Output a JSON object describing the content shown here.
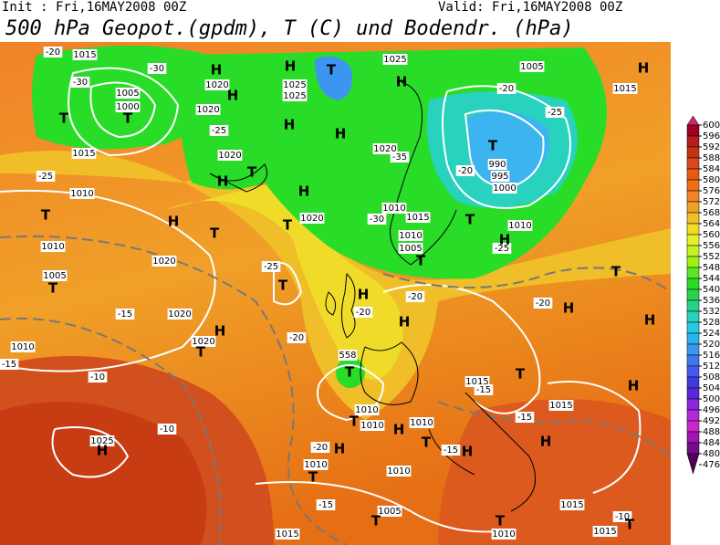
{
  "header": {
    "init": "Init : Fri,16MAY2008 00Z",
    "valid": "Valid: Fri,16MAY2008 00Z",
    "title": "500 hPa Geopot.(gpdm), T (C) und Bodendr. (hPa)"
  },
  "colorbar": {
    "ticks": [
      600,
      596,
      592,
      588,
      584,
      580,
      576,
      572,
      568,
      564,
      560,
      556,
      552,
      548,
      544,
      540,
      536,
      532,
      528,
      524,
      520,
      516,
      512,
      508,
      504,
      500,
      496,
      492,
      488,
      484,
      480,
      476
    ],
    "colors": [
      "#c8286e",
      "#a0001e",
      "#b41e1e",
      "#c83214",
      "#dc461e",
      "#e65a14",
      "#f06e14",
      "#f08228",
      "#f0a028",
      "#f0be28",
      "#f0dc28",
      "#e6f028",
      "#c8f028",
      "#a0f014",
      "#5ae628",
      "#28dc28",
      "#28d250",
      "#28d28c",
      "#28d2be",
      "#28c8e6",
      "#28b4f0",
      "#3c96f0",
      "#3c78f0",
      "#465af0",
      "#3c3cdc",
      "#5a28dc",
      "#8c28dc",
      "#b428dc",
      "#c828c8",
      "#a014b4",
      "#780a8c",
      "#50005a"
    ]
  },
  "map_labels": [
    "H",
    "H",
    "H",
    "T",
    "1025",
    "1015",
    "-20",
    "-30",
    "-30",
    "1005",
    "1000",
    "T",
    "T",
    "1020",
    "1025",
    "1025",
    "H",
    "1020",
    "-25",
    "H",
    "H",
    "1020",
    "-35",
    "T",
    "990",
    "995",
    "1000",
    "-20",
    "-25",
    "1005",
    "1015",
    "-20",
    "H",
    "T",
    "H",
    "H",
    "1020",
    "1020",
    "1015",
    "1010",
    "-30",
    "T",
    "1010",
    "-25",
    "H",
    "T",
    "H",
    "T",
    "T",
    "1015",
    "-25",
    "1010",
    "1010",
    "1005",
    "T",
    "1020",
    "-25",
    "T",
    "1005",
    "T",
    "1010",
    "H",
    "-20",
    "H",
    "-20",
    "-20",
    "H",
    "T",
    "1020",
    "-15",
    "H",
    "1020",
    "T",
    "1010",
    "-15",
    "-20",
    "558",
    "T",
    "-10",
    "1015",
    "-15",
    "1015",
    "-15",
    "T",
    "H",
    "H",
    "1010",
    "T",
    "1010",
    "H",
    "1010",
    "T",
    "-15",
    "H",
    "H",
    "-10",
    "1025",
    "H",
    "-20",
    "H",
    "1010",
    "T",
    "1010",
    "-15",
    "1005",
    "T",
    "1015",
    "T",
    "1010",
    "-10",
    "1015",
    "T",
    "1015"
  ]
}
